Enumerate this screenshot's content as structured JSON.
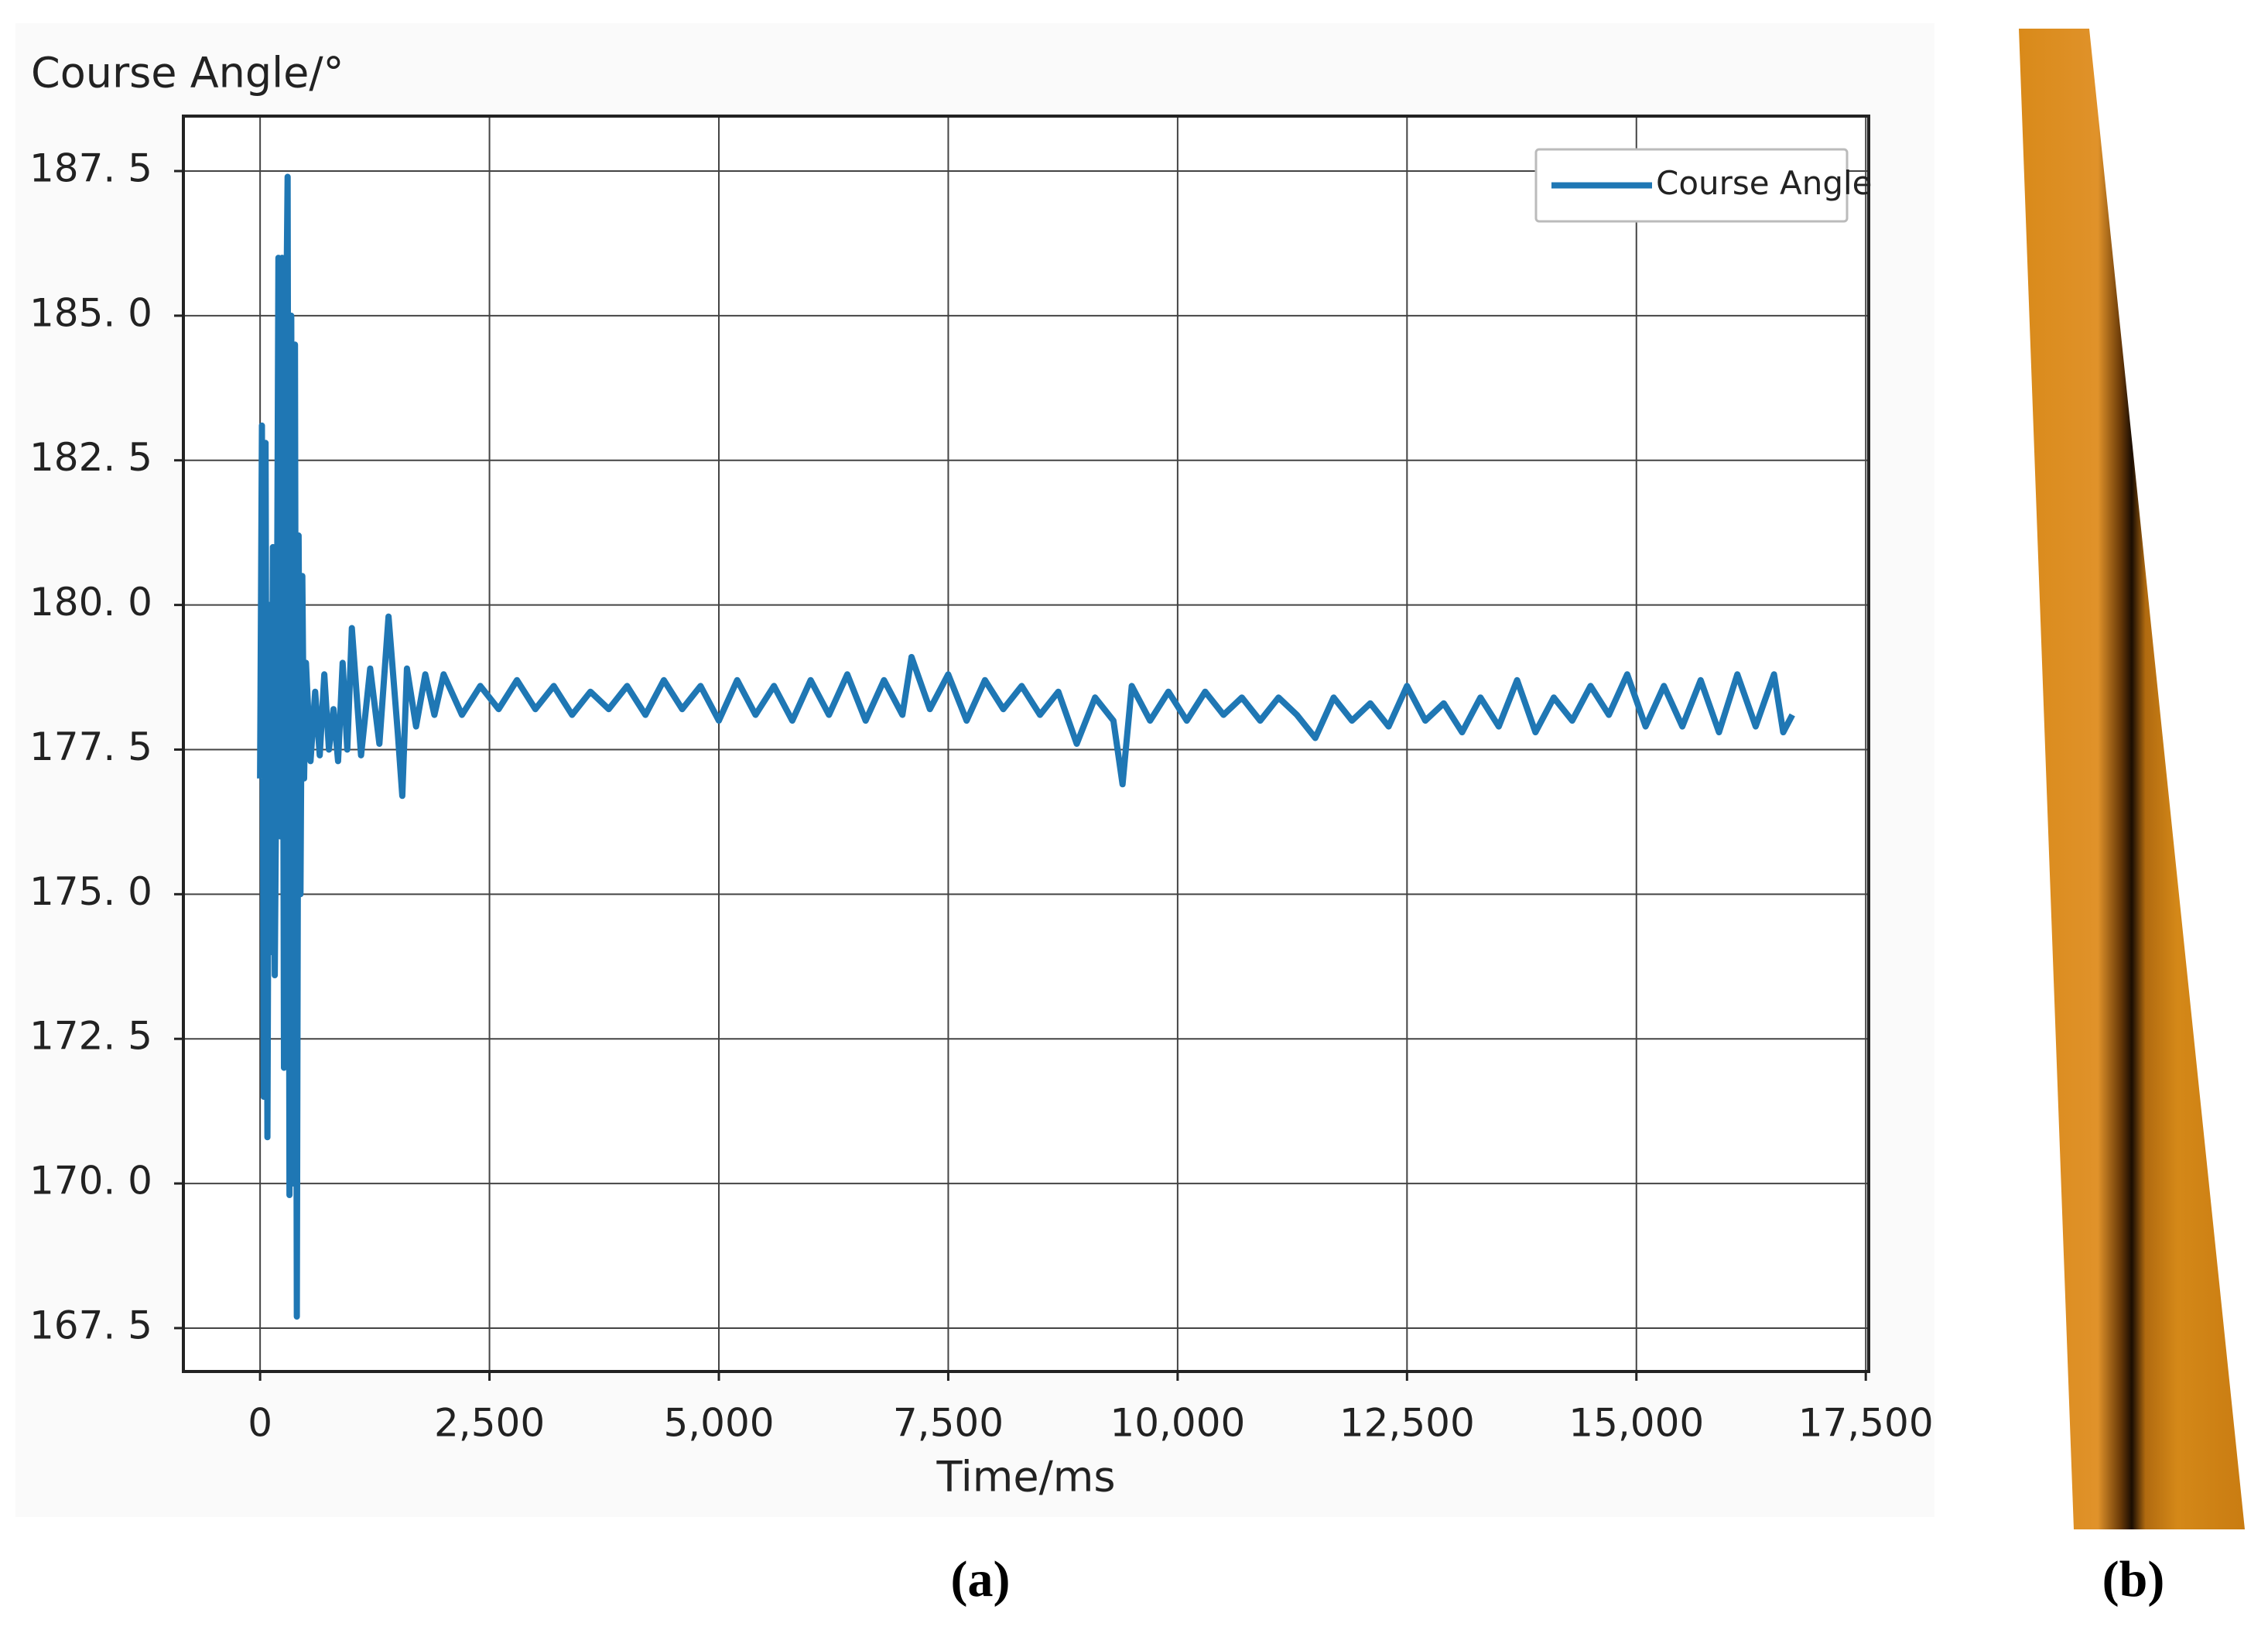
{
  "chart_data": {
    "type": "line",
    "ylabel": "Course Angle/°",
    "xlabel": "Time/ms",
    "x": [
      0,
      20,
      40,
      60,
      80,
      100,
      120,
      140,
      160,
      180,
      200,
      220,
      240,
      260,
      280,
      300,
      320,
      340,
      360,
      380,
      400,
      420,
      440,
      460,
      480,
      500,
      550,
      600,
      650,
      700,
      750,
      800,
      850,
      900,
      950,
      1000,
      1100,
      1200,
      1300,
      1400,
      1500,
      1550,
      1600,
      1700,
      1800,
      1900,
      2000,
      2200,
      2400,
      2600,
      2800,
      3000,
      3200,
      3400,
      3600,
      3800,
      4000,
      4200,
      4400,
      4600,
      4800,
      5000,
      5200,
      5400,
      5600,
      5800,
      6000,
      6200,
      6400,
      6600,
      6800,
      7000,
      7100,
      7300,
      7500,
      7700,
      7900,
      8100,
      8300,
      8500,
      8700,
      8900,
      9100,
      9300,
      9400,
      9500,
      9700,
      9900,
      10100,
      10300,
      10500,
      10700,
      10900,
      11100,
      11300,
      11500,
      11700,
      11900,
      12100,
      12300,
      12500,
      12700,
      12900,
      13100,
      13300,
      13500,
      13700,
      13900,
      14100,
      14300,
      14500,
      14700,
      14900,
      15100,
      15300,
      15500,
      15700,
      15900,
      16100,
      16300,
      16500,
      16600,
      16700
    ],
    "series": [
      {
        "name": "Course Angle",
        "color": "#1f77b4",
        "values": [
          177,
          183.1,
          171.5,
          182.8,
          170.8,
          180,
          174,
          181,
          173.6,
          178,
          186,
          176,
          186,
          172,
          184,
          187.4,
          169.8,
          185,
          170,
          184.5,
          167.7,
          181.2,
          175,
          180.5,
          177,
          179,
          177.3,
          178.5,
          177.4,
          178.8,
          177.5,
          178.2,
          177.3,
          179,
          177.5,
          179.6,
          177.4,
          178.9,
          177.6,
          179.8,
          177.8,
          176.7,
          178.9,
          177.9,
          178.8,
          178.1,
          178.8,
          178.1,
          178.6,
          178.2,
          178.7,
          178.2,
          178.6,
          178.1,
          178.5,
          178.2,
          178.6,
          178.1,
          178.7,
          178.2,
          178.6,
          178.0,
          178.7,
          178.1,
          178.6,
          178.0,
          178.7,
          178.1,
          178.8,
          178.0,
          178.7,
          178.1,
          179.1,
          178.2,
          178.8,
          178.0,
          178.7,
          178.2,
          178.6,
          178.1,
          178.5,
          177.6,
          178.4,
          178.0,
          176.9,
          178.6,
          178.0,
          178.5,
          178.0,
          178.5,
          178.1,
          178.4,
          178.0,
          178.4,
          178.1,
          177.7,
          178.4,
          178.0,
          178.3,
          177.9,
          178.6,
          178.0,
          178.3,
          177.8,
          178.4,
          177.9,
          178.7,
          177.8,
          178.4,
          178.0,
          178.6,
          178.1,
          178.8,
          177.9,
          178.6,
          177.9,
          178.7,
          177.8,
          178.8,
          177.9,
          178.8,
          177.8,
          178.1
        ]
      }
    ],
    "xlim": [
      -836,
      17532
    ],
    "ylim": [
      166.75,
      188.45
    ],
    "xticks": [
      0,
      {
        "value": 2500,
        "label": "2,500"
      },
      {
        "value": 5000,
        "label": "5,000"
      },
      {
        "value": 7500,
        "label": "7,500"
      },
      {
        "value": 10000,
        "label": "10,000"
      },
      {
        "value": 12500,
        "label": "12,500"
      },
      {
        "value": 15000,
        "label": "15,000"
      },
      {
        "value": 17500,
        "label": "17,500"
      }
    ],
    "yticks": [
      {
        "value": 167.5,
        "label": "167. 5"
      },
      {
        "value": 170,
        "label": "170. 0"
      },
      {
        "value": 172.5,
        "label": "172. 5"
      },
      {
        "value": 175,
        "label": "175. 0"
      },
      {
        "value": 177.5,
        "label": "177. 5"
      },
      {
        "value": 180,
        "label": "180. 0"
      },
      {
        "value": 182.5,
        "label": "182. 5"
      },
      {
        "value": 185,
        "label": "185. 0"
      },
      {
        "value": 187.5,
        "label": "187. 5"
      }
    ],
    "grid": true,
    "legend": "upper right"
  },
  "panels": {
    "a": "(a)",
    "b": "(b)"
  }
}
